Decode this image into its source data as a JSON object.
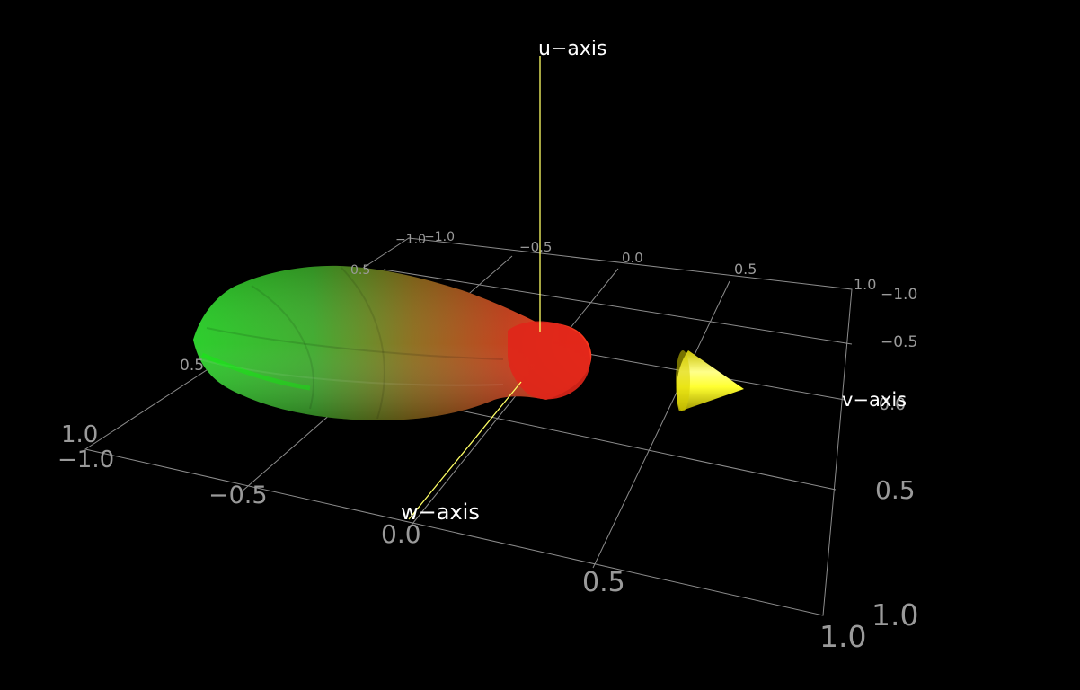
{
  "viewer": {
    "background_color": "#000000",
    "grid_color": "#8c8c8c",
    "axis_line_color": "#ffff66",
    "axis_labels": {
      "u": "u−axis",
      "v": "v−axis",
      "w": "w−axis"
    },
    "ticks": {
      "top_back": [
        "−1.0",
        "−0.5",
        "0.0",
        "0.5",
        "1.0"
      ],
      "top_back_extra": [
        "−1.0"
      ],
      "right_back": [
        "−1.0",
        "−0.5",
        "0.0"
      ],
      "front_left": [
        "1.0",
        "−1.0",
        "−0.5",
        "0.0",
        "0.5",
        "1.0"
      ],
      "right_front": [
        "0.5",
        "1.0"
      ],
      "left_partial": [
        "0.5",
        "0.5"
      ]
    },
    "surface": {
      "shape": "radiation-lobe",
      "color_near": "#ff2010",
      "color_far": "#1fd01f"
    },
    "cone": {
      "color": "#ffff44",
      "direction": "+v"
    }
  }
}
